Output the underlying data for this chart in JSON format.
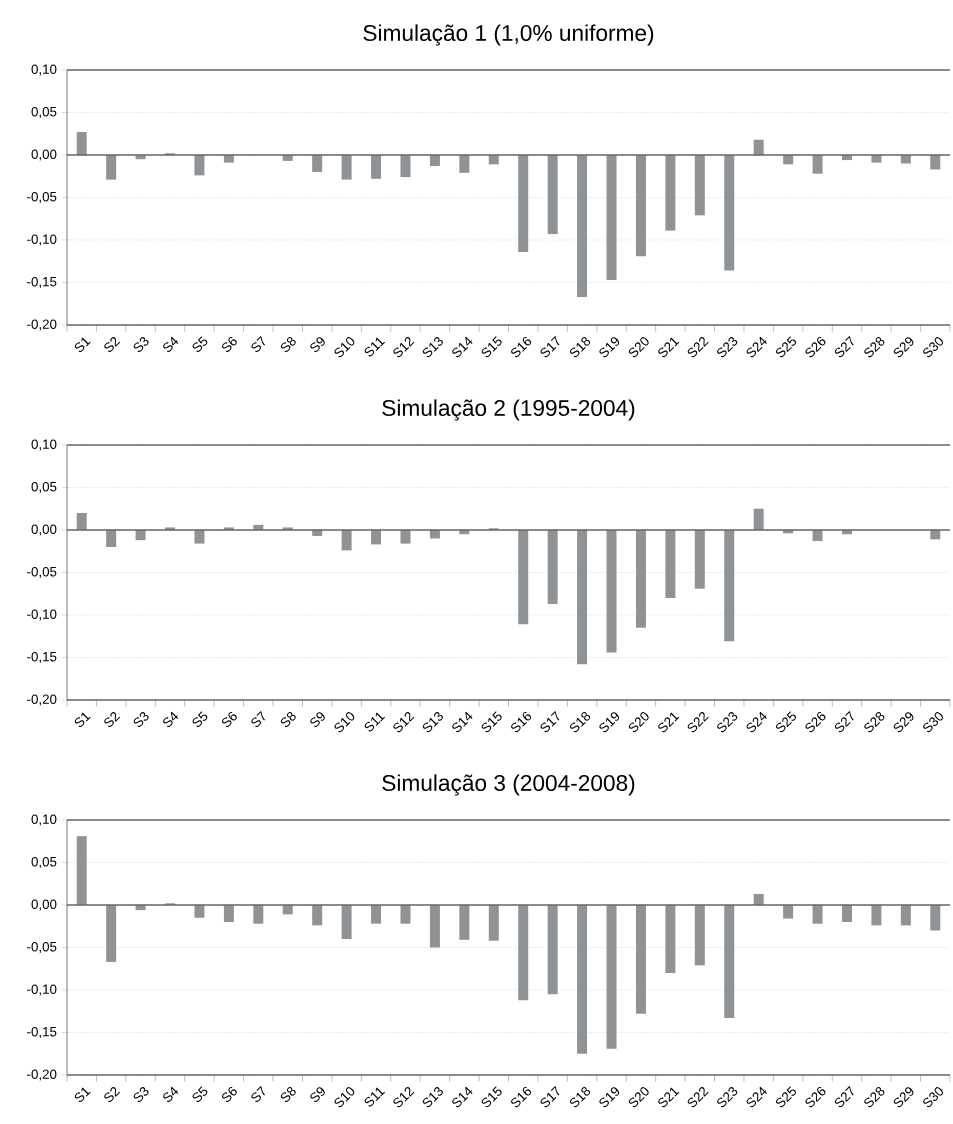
{
  "chart_data": [
    {
      "type": "bar",
      "title": "Simulação 1 (1,0% uniforme)",
      "categories": [
        "S1",
        "S2",
        "S3",
        "S4",
        "S5",
        "S6",
        "S7",
        "S8",
        "S9",
        "S10",
        "S11",
        "S12",
        "S13",
        "S14",
        "S15",
        "S16",
        "S17",
        "S18",
        "S19",
        "S20",
        "S21",
        "S22",
        "S23",
        "S24",
        "S25",
        "S26",
        "S27",
        "S28",
        "S29",
        "S30"
      ],
      "values": [
        0.027,
        -0.029,
        -0.005,
        0.002,
        -0.024,
        -0.009,
        0,
        -0.007,
        -0.02,
        -0.029,
        -0.028,
        -0.026,
        -0.013,
        -0.021,
        -0.011,
        -0.114,
        -0.093,
        -0.167,
        -0.147,
        -0.119,
        -0.089,
        -0.071,
        -0.136,
        0.018,
        -0.011,
        -0.022,
        -0.006,
        -0.009,
        -0.01,
        -0.017
      ],
      "color": "#8f9396",
      "ylim": [
        -0.2,
        0.1
      ],
      "yticks": [
        {
          "value": -0.2,
          "label": "-0,20"
        },
        {
          "value": -0.15,
          "label": "-0,15"
        },
        {
          "value": -0.1,
          "label": "-0,10"
        },
        {
          "value": -0.05,
          "label": "-0,05"
        },
        {
          "value": 0,
          "label": "0,00"
        },
        {
          "value": 0.05,
          "label": "0,05"
        },
        {
          "value": 0.1,
          "label": "0,10"
        }
      ],
      "grid": "y"
    },
    {
      "type": "bar",
      "title": "Simulação 2 (1995-2004)",
      "categories": [
        "S1",
        "S2",
        "S3",
        "S4",
        "S5",
        "S6",
        "S7",
        "S8",
        "S9",
        "S10",
        "S11",
        "S12",
        "S13",
        "S14",
        "S15",
        "S16",
        "S17",
        "S18",
        "S19",
        "S20",
        "S21",
        "S22",
        "S23",
        "S24",
        "S25",
        "S26",
        "S27",
        "S28",
        "S29",
        "S30"
      ],
      "values": [
        0.02,
        -0.02,
        -0.012,
        0.003,
        -0.016,
        0.003,
        0.006,
        0.003,
        -0.007,
        -0.024,
        -0.017,
        -0.016,
        -0.01,
        -0.005,
        0.002,
        -0.111,
        -0.087,
        -0.158,
        -0.144,
        -0.115,
        -0.08,
        -0.069,
        -0.131,
        0.025,
        -0.004,
        -0.013,
        -0.005,
        0,
        0,
        -0.011
      ],
      "color": "#8f9396",
      "ylim": [
        -0.2,
        0.1
      ],
      "yticks": [
        {
          "value": -0.2,
          "label": "-0,20"
        },
        {
          "value": -0.15,
          "label": "-0,15"
        },
        {
          "value": -0.1,
          "label": "-0,10"
        },
        {
          "value": -0.05,
          "label": "-0,05"
        },
        {
          "value": 0,
          "label": "0,00"
        },
        {
          "value": 0.05,
          "label": "0,05"
        },
        {
          "value": 0.1,
          "label": "0,10"
        }
      ],
      "grid": "y"
    },
    {
      "type": "bar",
      "title": "Simulação 3 (2004-2008)",
      "categories": [
        "S1",
        "S2",
        "S3",
        "S4",
        "S5",
        "S6",
        "S7",
        "S8",
        "S9",
        "S10",
        "S11",
        "S12",
        "S13",
        "S14",
        "S15",
        "S16",
        "S17",
        "S18",
        "S19",
        "S20",
        "S21",
        "S22",
        "S23",
        "S24",
        "S25",
        "S26",
        "S27",
        "S28",
        "S29",
        "S30"
      ],
      "values": [
        0.081,
        -0.067,
        -0.006,
        0.002,
        -0.015,
        -0.02,
        -0.022,
        -0.011,
        -0.024,
        -0.04,
        -0.022,
        -0.022,
        -0.05,
        -0.041,
        -0.042,
        -0.112,
        -0.105,
        -0.175,
        -0.169,
        -0.128,
        -0.08,
        -0.071,
        -0.133,
        0.013,
        -0.016,
        -0.022,
        -0.02,
        -0.024,
        -0.024,
        -0.03
      ],
      "color": "#8f9396",
      "ylim": [
        -0.2,
        0.1
      ],
      "yticks": [
        {
          "value": -0.2,
          "label": "-0,20"
        },
        {
          "value": -0.15,
          "label": "-0,15"
        },
        {
          "value": -0.1,
          "label": "-0,10"
        },
        {
          "value": -0.05,
          "label": "-0,05"
        },
        {
          "value": 0,
          "label": "0,00"
        },
        {
          "value": 0.05,
          "label": "0,05"
        },
        {
          "value": 0.1,
          "label": "0,10"
        }
      ],
      "grid": "y"
    }
  ]
}
